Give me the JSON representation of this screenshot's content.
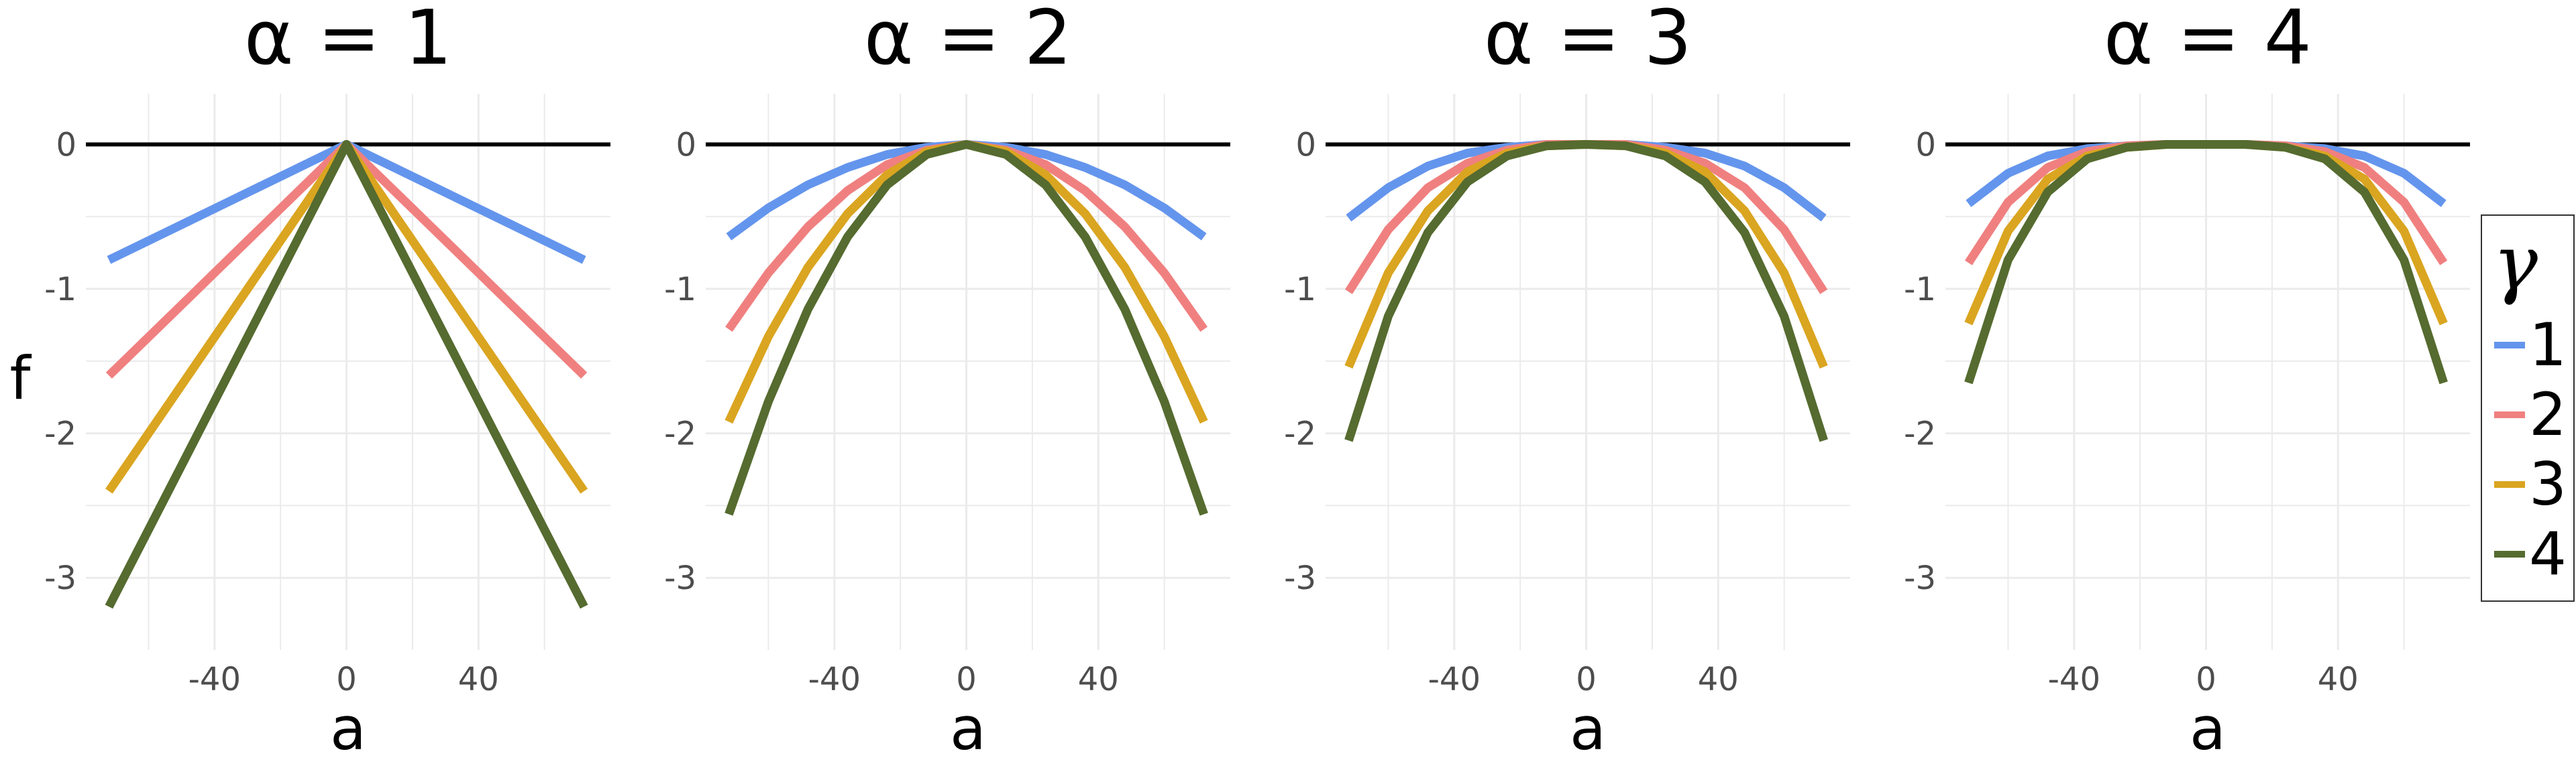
{
  "colors": {
    "gamma_1": "#6495ED",
    "gamma_2": "#F08080",
    "gamma_3": "#DAA520",
    "gamma_4": "#556B2F",
    "zero_line": "#000000",
    "grid": "#EBEBEB",
    "tick_text": "#4D4D4D"
  },
  "y_axis_title": "f",
  "x_axis_title": "a",
  "legend": {
    "title": "γ",
    "items": [
      {
        "label": "1",
        "color": "#6495ED"
      },
      {
        "label": "2",
        "color": "#F08080"
      },
      {
        "label": "3",
        "color": "#DAA520"
      },
      {
        "label": "4",
        "color": "#556B2F"
      }
    ],
    "position": "right"
  },
  "chart_data": [
    {
      "type": "line",
      "title": "α = 1",
      "xlabel": "a",
      "ylabel": "f",
      "xlim": [
        -79,
        80
      ],
      "ylim": [
        -3.5,
        0.35
      ],
      "x_ticks": [
        -40,
        0,
        40
      ],
      "y_ticks": [
        0,
        -1,
        -2,
        -3
      ],
      "x_tick_labels": [
        "-40",
        "0",
        "40"
      ],
      "y_tick_labels": [
        "0",
        "-1",
        "-2",
        "-3"
      ],
      "grid": true,
      "hline": 0,
      "x": [
        -72,
        -54,
        -36,
        -18,
        0,
        18,
        36,
        54,
        72
      ],
      "series": [
        {
          "name": "1",
          "values": [
            -0.8,
            -0.6,
            -0.4,
            -0.2,
            0,
            -0.2,
            -0.4,
            -0.6,
            -0.8
          ]
        },
        {
          "name": "2",
          "values": [
            -1.6,
            -1.2,
            -0.8,
            -0.4,
            0,
            -0.4,
            -0.8,
            -1.2,
            -1.6
          ]
        },
        {
          "name": "3",
          "values": [
            -2.4,
            -1.8,
            -1.2,
            -0.6,
            0,
            -0.6,
            -1.2,
            -1.8,
            -2.4
          ]
        },
        {
          "name": "4",
          "values": [
            -3.2,
            -2.4,
            -1.6,
            -0.8,
            0,
            -0.8,
            -1.6,
            -2.4,
            -3.2
          ]
        }
      ]
    },
    {
      "type": "line",
      "title": "α = 2",
      "xlabel": "a",
      "ylabel": "",
      "xlim": [
        -79,
        80
      ],
      "ylim": [
        -3.5,
        0.35
      ],
      "x_ticks": [
        -40,
        0,
        40
      ],
      "y_ticks": [
        0,
        -1,
        -2,
        -3
      ],
      "x_tick_labels": [
        "-40",
        "0",
        "40"
      ],
      "y_tick_labels": [
        "0",
        "-1",
        "-2",
        "-3"
      ],
      "grid": true,
      "hline": 0,
      "x": [
        -72,
        -60,
        -48,
        -36,
        -24,
        -12,
        0,
        12,
        24,
        36,
        48,
        60,
        72
      ],
      "series": [
        {
          "name": "1",
          "values": [
            -0.64,
            -0.44,
            -0.28,
            -0.16,
            -0.07,
            -0.02,
            0,
            -0.02,
            -0.07,
            -0.16,
            -0.28,
            -0.44,
            -0.64
          ]
        },
        {
          "name": "2",
          "values": [
            -1.28,
            -0.89,
            -0.57,
            -0.32,
            -0.14,
            -0.04,
            0,
            -0.04,
            -0.14,
            -0.32,
            -0.57,
            -0.89,
            -1.28
          ]
        },
        {
          "name": "3",
          "values": [
            -1.92,
            -1.33,
            -0.85,
            -0.48,
            -0.21,
            -0.05,
            0,
            -0.05,
            -0.21,
            -0.48,
            -0.85,
            -1.33,
            -1.92
          ]
        },
        {
          "name": "4",
          "values": [
            -2.56,
            -1.78,
            -1.14,
            -0.64,
            -0.28,
            -0.07,
            0,
            -0.07,
            -0.28,
            -0.64,
            -1.14,
            -1.78,
            -2.56
          ]
        }
      ]
    },
    {
      "type": "line",
      "title": "α = 3",
      "xlabel": "a",
      "ylabel": "",
      "xlim": [
        -79,
        80
      ],
      "ylim": [
        -3.5,
        0.35
      ],
      "x_ticks": [
        -40,
        0,
        40
      ],
      "y_ticks": [
        0,
        -1,
        -2,
        -3
      ],
      "x_tick_labels": [
        "-40",
        "0",
        "40"
      ],
      "y_tick_labels": [
        "0",
        "-1",
        "-2",
        "-3"
      ],
      "grid": true,
      "hline": 0,
      "x": [
        -72,
        -60,
        -48,
        -36,
        -24,
        -12,
        0,
        12,
        24,
        36,
        48,
        60,
        72
      ],
      "series": [
        {
          "name": "1",
          "values": [
            -0.51,
            -0.3,
            -0.15,
            -0.06,
            -0.02,
            0,
            0,
            0,
            -0.02,
            -0.06,
            -0.15,
            -0.3,
            -0.51
          ]
        },
        {
          "name": "2",
          "values": [
            -1.02,
            -0.59,
            -0.3,
            -0.13,
            -0.04,
            0,
            0,
            0,
            -0.04,
            -0.13,
            -0.3,
            -0.59,
            -1.02
          ]
        },
        {
          "name": "3",
          "values": [
            -1.54,
            -0.89,
            -0.46,
            -0.19,
            -0.06,
            -0.01,
            0,
            -0.01,
            -0.06,
            -0.19,
            -0.46,
            -0.89,
            -1.54
          ]
        },
        {
          "name": "4",
          "values": [
            -2.05,
            -1.19,
            -0.61,
            -0.26,
            -0.08,
            -0.01,
            0,
            -0.01,
            -0.08,
            -0.26,
            -0.61,
            -1.19,
            -2.05
          ]
        }
      ]
    },
    {
      "type": "line",
      "title": "α = 4",
      "xlabel": "a",
      "ylabel": "",
      "xlim": [
        -79,
        80
      ],
      "ylim": [
        -3.5,
        0.35
      ],
      "x_ticks": [
        -40,
        0,
        40
      ],
      "y_ticks": [
        0,
        -1,
        -2,
        -3
      ],
      "x_tick_labels": [
        "-40",
        "0",
        "40"
      ],
      "y_tick_labels": [
        "0",
        "-1",
        "-2",
        "-3"
      ],
      "grid": true,
      "hline": 0,
      "x": [
        -72,
        -60,
        -48,
        -36,
        -24,
        -12,
        0,
        12,
        24,
        36,
        48,
        60,
        72
      ],
      "series": [
        {
          "name": "1",
          "values": [
            -0.41,
            -0.2,
            -0.08,
            -0.03,
            -0.01,
            0,
            0,
            0,
            -0.01,
            -0.03,
            -0.08,
            -0.2,
            -0.41
          ]
        },
        {
          "name": "2",
          "values": [
            -0.82,
            -0.4,
            -0.16,
            -0.05,
            -0.01,
            0,
            0,
            0,
            -0.01,
            -0.05,
            -0.16,
            -0.4,
            -0.82
          ]
        },
        {
          "name": "3",
          "values": [
            -1.24,
            -0.6,
            -0.24,
            -0.08,
            -0.02,
            0,
            0,
            0,
            -0.02,
            -0.08,
            -0.24,
            -0.6,
            -1.24
          ]
        },
        {
          "name": "4",
          "values": [
            -1.65,
            -0.8,
            -0.33,
            -0.1,
            -0.02,
            0,
            0,
            0,
            -0.02,
            -0.1,
            -0.33,
            -0.8,
            -1.65
          ]
        }
      ]
    }
  ]
}
